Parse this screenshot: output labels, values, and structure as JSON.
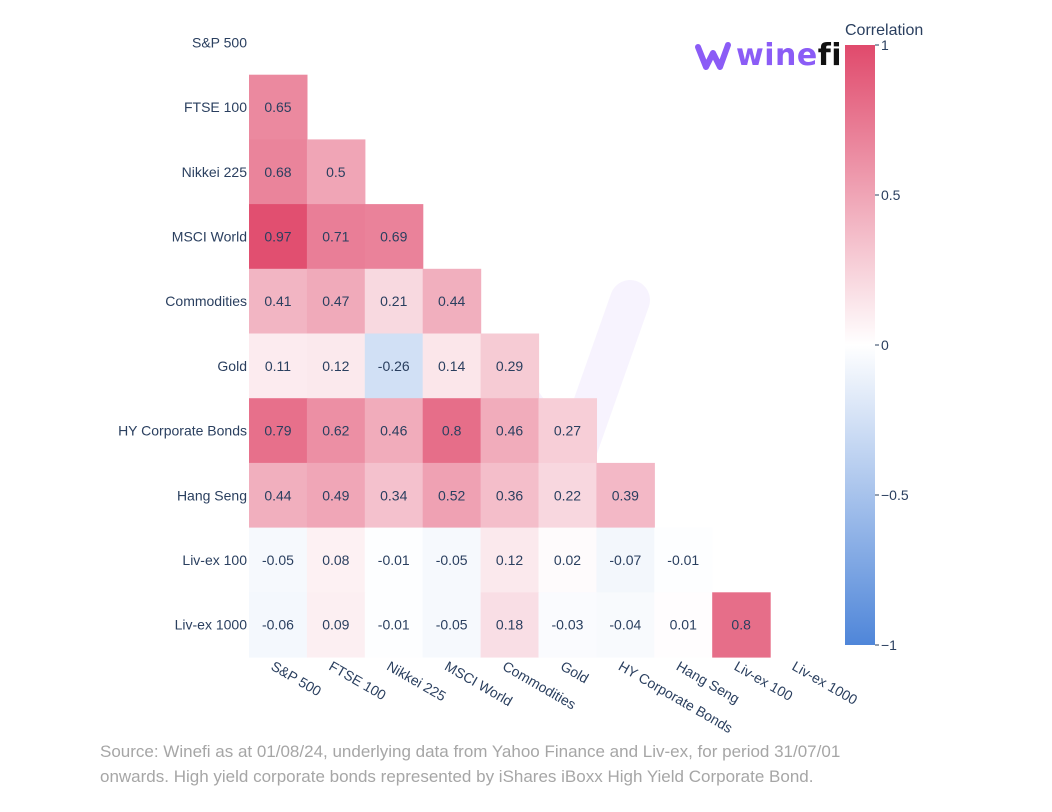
{
  "brand": {
    "name_part1": "wine",
    "name_part2": "fi",
    "logo_icon": "winefi-w-logo-icon"
  },
  "source_line1": "Source: Winefi as at 01/08/24, underlying data from Yahoo Finance and Liv-ex, for period 31/07/01",
  "source_line2": "onwards. High yield corporate bonds represented by iShares iBoxx High Yield Corporate Bond.",
  "colors": {
    "positive": "#e04a6c",
    "neutral": "#ffffff",
    "negative": "#4f86d9",
    "text": "#2a3f5f"
  },
  "chart_data": {
    "type": "heatmap",
    "title": "",
    "rows": [
      "S&P 500",
      "FTSE 100",
      "Nikkei 225",
      "MSCI World",
      "Commodities",
      "Gold",
      "HY Corporate Bonds",
      "Hang Seng",
      "Liv-ex 100",
      "Liv-ex 1000"
    ],
    "columns": [
      "S&P 500",
      "FTSE 100",
      "Nikkei 225",
      "MSCI World",
      "Commodities",
      "Gold",
      "HY Corporate Bonds",
      "Hang Seng",
      "Liv-ex 100",
      "Liv-ex 1000"
    ],
    "values": [
      [],
      [
        0.65
      ],
      [
        0.68,
        0.5
      ],
      [
        0.97,
        0.71,
        0.69
      ],
      [
        0.41,
        0.47,
        0.21,
        0.44
      ],
      [
        0.11,
        0.12,
        -0.26,
        0.14,
        0.29
      ],
      [
        0.79,
        0.62,
        0.46,
        0.8,
        0.46,
        0.27
      ],
      [
        0.44,
        0.49,
        0.34,
        0.52,
        0.36,
        0.22,
        0.39
      ],
      [
        -0.05,
        0.08,
        -0.01,
        -0.05,
        0.12,
        0.02,
        -0.07,
        -0.01
      ],
      [
        -0.06,
        0.09,
        -0.01,
        -0.05,
        0.18,
        -0.03,
        -0.04,
        0.01,
        0.8
      ]
    ],
    "colorbar": {
      "title": "Correlation",
      "range": [
        -1,
        1
      ],
      "ticks": [
        1,
        0.5,
        0,
        -0.5,
        -1
      ],
      "tick_labels": [
        "1",
        "0.5",
        "0",
        "−0.5",
        "−1"
      ]
    }
  }
}
